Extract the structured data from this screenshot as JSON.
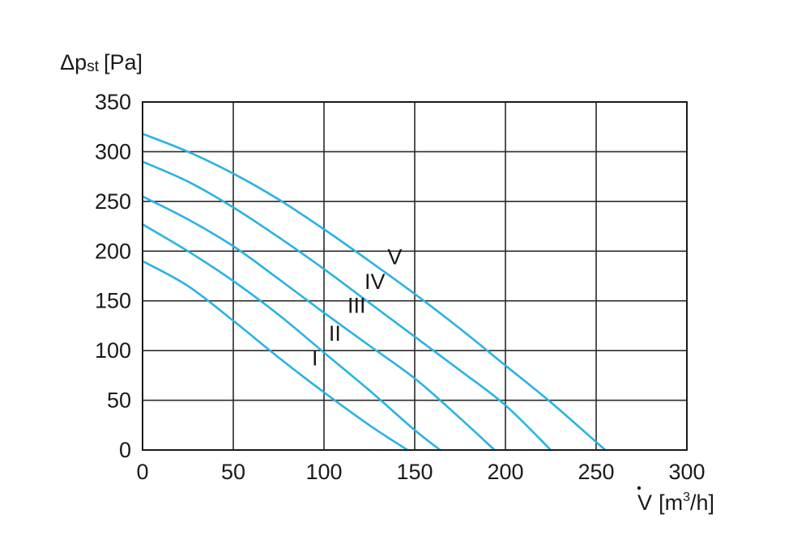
{
  "chart_data": {
    "type": "line",
    "ylabel": {
      "symbol": "Δp",
      "subscript": "st",
      "unit": "[Pa]"
    },
    "xlabel": {
      "symbol": "V",
      "unit_prefix": "[m",
      "unit_exponent": "3",
      "unit_suffix": "/h]"
    },
    "xlim": [
      0,
      300
    ],
    "ylim": [
      0,
      350
    ],
    "x_ticks": [
      0,
      50,
      100,
      150,
      200,
      250,
      300
    ],
    "y_ticks": [
      0,
      50,
      100,
      150,
      200,
      250,
      300,
      350
    ],
    "grid": true,
    "series_color": "#29b3e3",
    "series": [
      {
        "name": "I",
        "label_at": [
          95,
          85
        ],
        "x": [
          0,
          25,
          50,
          75,
          100,
          125,
          146
        ],
        "y": [
          190,
          165,
          130,
          93,
          58,
          25,
          0
        ]
      },
      {
        "name": "II",
        "label_at": [
          106,
          110
        ],
        "x": [
          0,
          25,
          50,
          75,
          100,
          125,
          150,
          164
        ],
        "y": [
          227,
          200,
          170,
          136,
          98,
          60,
          20,
          0
        ]
      },
      {
        "name": "III",
        "label_at": [
          118,
          138
        ],
        "x": [
          0,
          25,
          50,
          75,
          100,
          125,
          150,
          175,
          194
        ],
        "y": [
          255,
          232,
          205,
          172,
          138,
          105,
          72,
          32,
          0
        ]
      },
      {
        "name": "IV",
        "label_at": [
          128,
          162
        ],
        "x": [
          0,
          25,
          50,
          75,
          100,
          125,
          150,
          175,
          200,
          225
        ],
        "y": [
          290,
          270,
          244,
          214,
          182,
          148,
          114,
          80,
          45,
          0
        ]
      },
      {
        "name": "V",
        "label_at": [
          139,
          187
        ],
        "x": [
          0,
          25,
          50,
          75,
          100,
          125,
          150,
          175,
          200,
          225,
          255
        ],
        "y": [
          318,
          300,
          278,
          252,
          222,
          190,
          157,
          122,
          85,
          48,
          0
        ]
      }
    ]
  }
}
